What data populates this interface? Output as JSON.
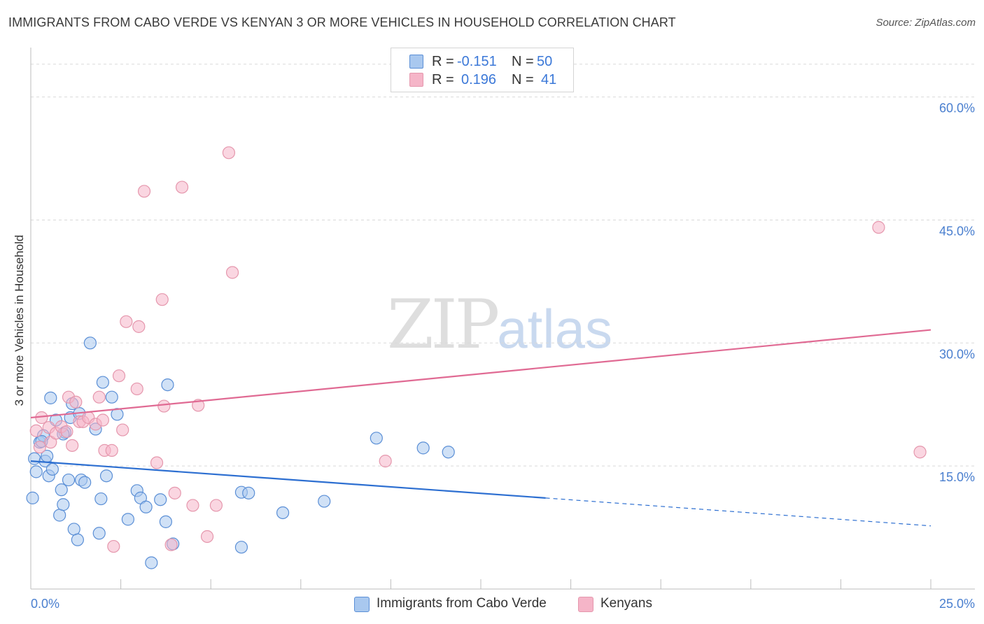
{
  "title": "IMMIGRANTS FROM CABO VERDE VS KENYAN 3 OR MORE VEHICLES IN HOUSEHOLD CORRELATION CHART",
  "source": "Source: ZipAtlas.com",
  "watermark": {
    "zip": "ZIP",
    "atlas": "atlas"
  },
  "colors": {
    "blue_fill": "#a9c8ef",
    "blue_stroke": "#5b8fd6",
    "blue_line": "#2d6fd1",
    "pink_fill": "#f5b5c8",
    "pink_stroke": "#e597ad",
    "pink_line": "#e06a93",
    "tick": "#4a7fcf",
    "grid": "#d9d9d9"
  },
  "legend_top": [
    {
      "r_label": "R =",
      "r_value": "-0.151",
      "n_label": "N =",
      "n_value": "50",
      "color": "#a9c8ef"
    },
    {
      "r_label": "R =",
      "r_value": "0.196",
      "n_label": "N =",
      "n_value": "41",
      "color": "#f5b5c8"
    }
  ],
  "legend_bottom": [
    {
      "label": "Immigrants from Cabo Verde",
      "color": "#a9c8ef"
    },
    {
      "label": "Kenyans",
      "color": "#f5b5c8"
    }
  ],
  "chart_data": {
    "type": "scatter",
    "title": "IMMIGRANTS FROM CABO VERDE VS KENYAN 3 OR MORE VEHICLES IN HOUSEHOLD CORRELATION CHART",
    "xlabel": "",
    "ylabel": "3 or more Vehicles in Household",
    "xlim": [
      0,
      25
    ],
    "ylim": [
      0,
      65
    ],
    "x_tick_labels": [
      "0.0%",
      "25.0%"
    ],
    "y_ticks": [
      15,
      30,
      45,
      60
    ],
    "y_tick_labels": [
      "15.0%",
      "30.0%",
      "45.0%",
      "60.0%"
    ],
    "grid": true,
    "series": [
      {
        "name": "Immigrants from Cabo Verde",
        "r": -0.151,
        "n": 50,
        "trend": {
          "x0": 0,
          "y0": 15.6,
          "x1": 14.3,
          "y1": 11.1,
          "dash_to_x": 25,
          "dash_to_y": 7.7
        },
        "points": [
          [
            0.05,
            11.1
          ],
          [
            0.1,
            15.9
          ],
          [
            0.15,
            14.3
          ],
          [
            0.25,
            17.9
          ],
          [
            0.35,
            18.7
          ],
          [
            0.4,
            15.6
          ],
          [
            0.45,
            16.2
          ],
          [
            0.5,
            13.8
          ],
          [
            0.55,
            23.3
          ],
          [
            0.6,
            14.6
          ],
          [
            0.7,
            20.6
          ],
          [
            0.8,
            9.0
          ],
          [
            0.85,
            12.1
          ],
          [
            0.9,
            10.3
          ],
          [
            0.95,
            19.1
          ],
          [
            1.05,
            13.3
          ],
          [
            1.1,
            20.9
          ],
          [
            1.15,
            22.6
          ],
          [
            1.2,
            7.3
          ],
          [
            1.3,
            6.0
          ],
          [
            1.35,
            21.4
          ],
          [
            1.4,
            13.3
          ],
          [
            1.5,
            13.0
          ],
          [
            1.65,
            30.0
          ],
          [
            1.8,
            19.5
          ],
          [
            1.9,
            6.8
          ],
          [
            1.95,
            11.0
          ],
          [
            2.0,
            25.2
          ],
          [
            2.1,
            13.8
          ],
          [
            2.25,
            23.4
          ],
          [
            2.4,
            21.3
          ],
          [
            2.7,
            8.5
          ],
          [
            2.95,
            12.0
          ],
          [
            3.05,
            11.1
          ],
          [
            3.2,
            10.0
          ],
          [
            3.35,
            3.2
          ],
          [
            3.6,
            10.9
          ],
          [
            3.75,
            8.2
          ],
          [
            3.8,
            24.9
          ],
          [
            3.95,
            5.5
          ],
          [
            5.85,
            11.8
          ],
          [
            5.85,
            5.1
          ],
          [
            6.05,
            11.7
          ],
          [
            7.0,
            9.3
          ],
          [
            8.15,
            10.7
          ],
          [
            9.6,
            18.4
          ],
          [
            10.9,
            17.2
          ],
          [
            11.6,
            16.7
          ],
          [
            0.3,
            18.0
          ],
          [
            0.9,
            18.9
          ]
        ]
      },
      {
        "name": "Kenyans",
        "r": 0.196,
        "n": 41,
        "trend": {
          "x0": 0,
          "y0": 20.9,
          "x1": 25,
          "y1": 31.6
        },
        "points": [
          [
            0.15,
            19.3
          ],
          [
            0.25,
            17.3
          ],
          [
            0.3,
            20.9
          ],
          [
            0.5,
            19.7
          ],
          [
            0.55,
            17.9
          ],
          [
            0.7,
            19.0
          ],
          [
            0.85,
            19.8
          ],
          [
            1.0,
            19.2
          ],
          [
            1.05,
            23.4
          ],
          [
            1.15,
            17.5
          ],
          [
            1.25,
            22.8
          ],
          [
            1.35,
            20.4
          ],
          [
            1.45,
            20.4
          ],
          [
            1.6,
            20.9
          ],
          [
            1.8,
            20.1
          ],
          [
            1.9,
            23.4
          ],
          [
            2.0,
            20.6
          ],
          [
            2.05,
            16.9
          ],
          [
            2.25,
            16.9
          ],
          [
            2.3,
            5.2
          ],
          [
            2.45,
            26.0
          ],
          [
            2.55,
            19.4
          ],
          [
            2.65,
            32.6
          ],
          [
            2.95,
            24.4
          ],
          [
            3.0,
            32.0
          ],
          [
            3.15,
            48.5
          ],
          [
            3.5,
            15.4
          ],
          [
            3.65,
            35.3
          ],
          [
            3.7,
            22.3
          ],
          [
            3.9,
            5.4
          ],
          [
            4.0,
            11.7
          ],
          [
            4.2,
            49.0
          ],
          [
            4.5,
            10.2
          ],
          [
            4.65,
            22.4
          ],
          [
            4.9,
            6.4
          ],
          [
            5.15,
            10.2
          ],
          [
            5.5,
            53.2
          ],
          [
            5.6,
            38.6
          ],
          [
            9.85,
            15.6
          ],
          [
            23.55,
            44.1
          ],
          [
            24.7,
            16.7
          ]
        ]
      }
    ]
  }
}
